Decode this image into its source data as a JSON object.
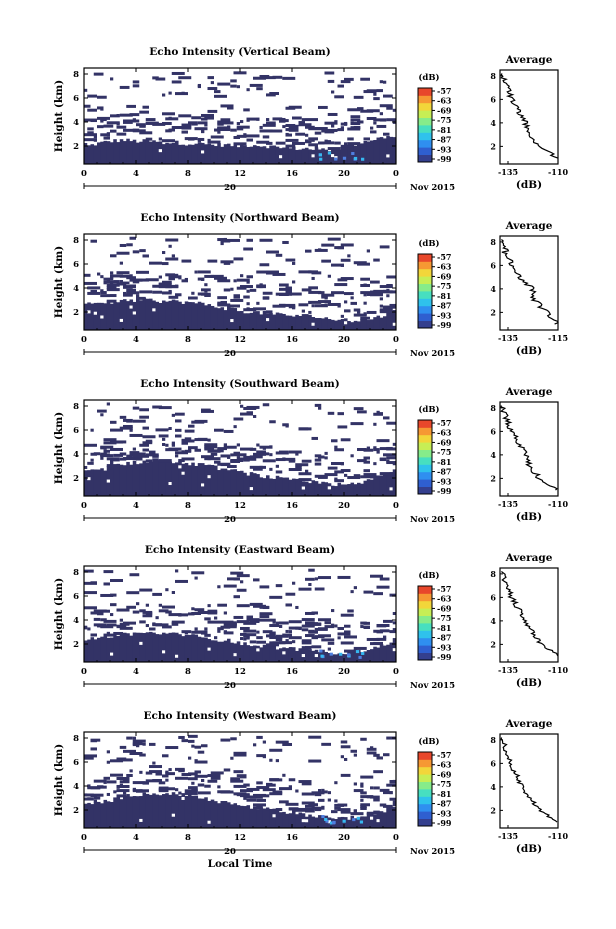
{
  "colors": {
    "background_echo": "#333366",
    "weak_echo": "#4f7fe0",
    "weak_echo_light": "#37b8f0",
    "colorbar_stops": [
      "#343f8e",
      "#2f5fd0",
      "#2f8ff0",
      "#2fc2ec",
      "#47dfc0",
      "#86ec8a",
      "#c7ee55",
      "#f2d63a",
      "#f69833",
      "#e8472b"
    ]
  },
  "figure": {
    "xlabel": "Local Time",
    "date_label": "Nov 2015",
    "xticks": [
      "0",
      "4",
      "8",
      "12",
      "16",
      "20",
      "0"
    ],
    "day_label": "20",
    "ylabel": "Height (km)",
    "yticks": [
      "2",
      "4",
      "6",
      "8"
    ],
    "colorbar_unit": "(dB)",
    "colorbar_ticks": [
      "-57",
      "-63",
      "-69",
      "-75",
      "-81",
      "-87",
      "-93",
      "-99"
    ],
    "avg_title": "Average",
    "avg_xlabel": "(dB)"
  },
  "chart_data": [
    {
      "type": "heatmap",
      "title": "Echo Intensity (Vertical Beam)",
      "xlabel": "",
      "ylabel": "Height (km)",
      "xlim": [
        0,
        24
      ],
      "ylim": [
        0.5,
        8.5
      ],
      "main_top": [
        1.9,
        2.2,
        2.4,
        2.5,
        2.4,
        2.4,
        2.3,
        2.3,
        2.2,
        2.2,
        2.1,
        2.1,
        2.0,
        2.1,
        2.0,
        1.9,
        1.8,
        1.8,
        1.7,
        1.7,
        1.9,
        2.2,
        2.5,
        2.7,
        2.8
      ],
      "avg": {
        "x_ticks": [
          "-135",
          "-110"
        ],
        "xlim": [
          -135,
          -110
        ],
        "y": [
          1,
          2,
          3,
          4,
          5,
          6,
          7,
          8
        ],
        "x": [
          -110,
          -118,
          -122,
          -124,
          -127,
          -130,
          -132,
          -134
        ]
      }
    },
    {
      "type": "heatmap",
      "title": "Echo Intensity (Northward Beam)",
      "xlabel": "",
      "ylabel": "Height (km)",
      "xlim": [
        0,
        24
      ],
      "ylim": [
        0.5,
        8.5
      ],
      "main_top": [
        2.7,
        2.8,
        2.8,
        2.9,
        3.0,
        3.0,
        2.9,
        2.9,
        2.8,
        2.7,
        2.5,
        2.3,
        2.1,
        2.0,
        1.9,
        1.8,
        1.7,
        1.7,
        1.6,
        1.4,
        1.3,
        1.3,
        1.4,
        1.7,
        2.3
      ],
      "avg": {
        "x_ticks": [
          "-135",
          "-115"
        ],
        "xlim": [
          -135,
          -115
        ],
        "y": [
          1,
          2,
          3,
          4,
          5,
          6,
          7,
          8
        ],
        "x": [
          -115,
          -119,
          -123,
          -124,
          -128,
          -131,
          -133,
          -134
        ]
      }
    },
    {
      "type": "heatmap",
      "title": "Echo Intensity (Southward Beam)",
      "xlabel": "",
      "ylabel": "Height (km)",
      "xlim": [
        0,
        24
      ],
      "ylim": [
        0.5,
        8.5
      ],
      "main_top": [
        2.5,
        2.6,
        2.9,
        3.2,
        3.3,
        3.4,
        3.4,
        3.3,
        3.2,
        3.1,
        2.9,
        2.7,
        2.5,
        2.3,
        2.1,
        2.0,
        1.8,
        1.7,
        1.6,
        1.5,
        1.4,
        1.5,
        1.8,
        2.2,
        2.6
      ],
      "avg": {
        "x_ticks": [
          "-135",
          "-110"
        ],
        "xlim": [
          -135,
          -110
        ],
        "y": [
          1,
          2,
          3,
          4,
          5,
          6,
          7,
          8
        ],
        "x": [
          -110,
          -118,
          -122,
          -124,
          -127,
          -130,
          -132,
          -134
        ]
      }
    },
    {
      "type": "heatmap",
      "title": "Echo Intensity (Eastward Beam)",
      "xlabel": "",
      "ylabel": "Height (km)",
      "xlim": [
        0,
        24
      ],
      "ylim": [
        0.5,
        8.5
      ],
      "main_top": [
        2.4,
        2.5,
        2.6,
        2.8,
        2.9,
        2.9,
        2.9,
        2.8,
        2.7,
        2.6,
        2.4,
        2.3,
        2.1,
        1.9,
        1.8,
        1.7,
        1.6,
        1.5,
        1.4,
        1.3,
        1.3,
        1.4,
        1.6,
        1.9,
        2.4
      ],
      "avg": {
        "x_ticks": [
          "-135",
          "-110"
        ],
        "xlim": [
          -135,
          -110
        ],
        "y": [
          1,
          2,
          3,
          4,
          5,
          6,
          7,
          8
        ],
        "x": [
          -110,
          -117,
          -121,
          -124,
          -127,
          -130,
          -132,
          -134
        ]
      }
    },
    {
      "type": "heatmap",
      "title": "Echo Intensity (Westward Beam)",
      "xlabel": "Local Time",
      "ylabel": "Height (km)",
      "xlim": [
        0,
        24
      ],
      "ylim": [
        0.5,
        8.5
      ],
      "main_top": [
        2.4,
        2.6,
        2.8,
        3.1,
        3.3,
        3.4,
        3.4,
        3.3,
        3.2,
        3.0,
        2.8,
        2.6,
        2.4,
        2.2,
        2.0,
        1.9,
        1.8,
        1.6,
        1.5,
        1.4,
        1.3,
        1.4,
        1.6,
        1.9,
        2.3
      ],
      "avg": {
        "x_ticks": [
          "-135",
          "-110"
        ],
        "xlim": [
          -135,
          -110
        ],
        "y": [
          1,
          2,
          3,
          4,
          5,
          6,
          7,
          8
        ],
        "x": [
          -110,
          -118,
          -122,
          -125,
          -128,
          -130,
          -132,
          -134
        ]
      }
    }
  ]
}
